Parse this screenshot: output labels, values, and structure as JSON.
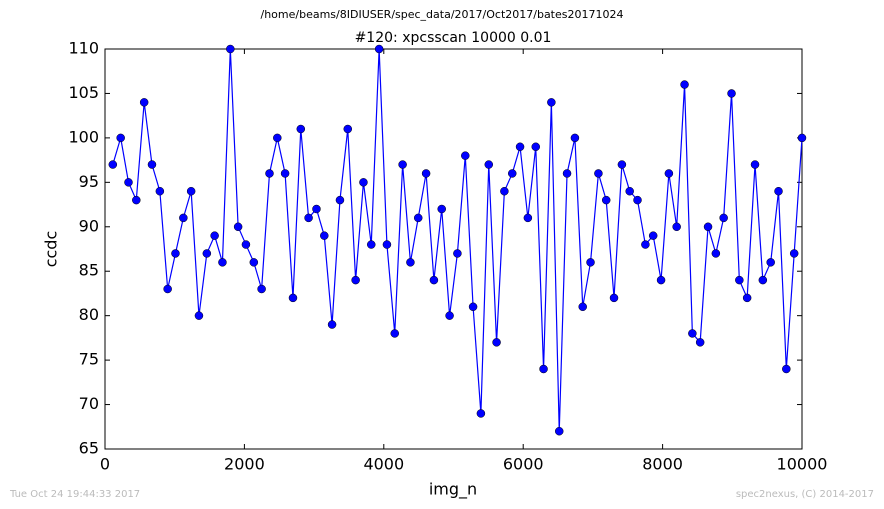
{
  "chart_data": {
    "type": "line",
    "suptitle": "/home/beams/8IDIUSER/spec_data/2017/Oct2017/bates20171024",
    "title": "#120: xpcsscan 10000 0.01",
    "xlabel": "img_n",
    "ylabel": "ccdc",
    "footer_left": "Tue Oct 24 19:44:33 2017",
    "footer_right": "spec2nexus, (C) 2014-2017",
    "x": [
      112,
      225,
      337,
      449,
      562,
      674,
      787,
      899,
      1011,
      1124,
      1236,
      1348,
      1461,
      1573,
      1685,
      1798,
      1910,
      2022,
      2135,
      2247,
      2360,
      2472,
      2584,
      2697,
      2809,
      2921,
      3034,
      3146,
      3258,
      3371,
      3483,
      3596,
      3708,
      3820,
      3933,
      4045,
      4157,
      4270,
      4382,
      4494,
      4607,
      4719,
      4831,
      4944,
      5056,
      5169,
      5281,
      5393,
      5506,
      5618,
      5730,
      5843,
      5955,
      6067,
      6180,
      6292,
      6404,
      6517,
      6629,
      6742,
      6854,
      6966,
      7079,
      7191,
      7303,
      7416,
      7528,
      7640,
      7753,
      7865,
      7978,
      8090,
      8202,
      8315,
      8427,
      8539,
      8652,
      8764,
      8876,
      8989,
      9101,
      9213,
      9326,
      9438,
      9551,
      9663,
      9775,
      9888,
      10000
    ],
    "series": [
      {
        "name": "ccdc",
        "color": "#0000ff",
        "values": [
          97,
          100,
          95,
          93,
          104,
          97,
          94,
          83,
          87,
          91,
          94,
          80,
          87,
          89,
          86,
          110,
          90,
          88,
          86,
          83,
          96,
          100,
          96,
          82,
          101,
          91,
          92,
          89,
          79,
          93,
          101,
          84,
          95,
          88,
          110,
          88,
          78,
          97,
          86,
          91,
          96,
          84,
          92,
          80,
          87,
          98,
          81,
          69,
          97,
          77,
          94,
          96,
          99,
          91,
          99,
          74,
          104,
          67,
          96,
          100,
          81,
          86,
          96,
          93,
          82,
          97,
          94,
          93,
          88,
          89,
          84,
          96,
          90,
          106,
          78,
          77,
          90,
          87,
          91,
          105,
          84,
          82,
          97,
          84,
          86,
          94,
          74,
          87,
          100
        ]
      }
    ],
    "xlim": [
      0,
      10000
    ],
    "xticks": [
      0,
      2000,
      4000,
      6000,
      8000,
      10000
    ],
    "ylim": [
      65,
      110
    ],
    "yticks": [
      65,
      70,
      75,
      80,
      85,
      90,
      95,
      100,
      105,
      110
    ],
    "grid": false
  }
}
